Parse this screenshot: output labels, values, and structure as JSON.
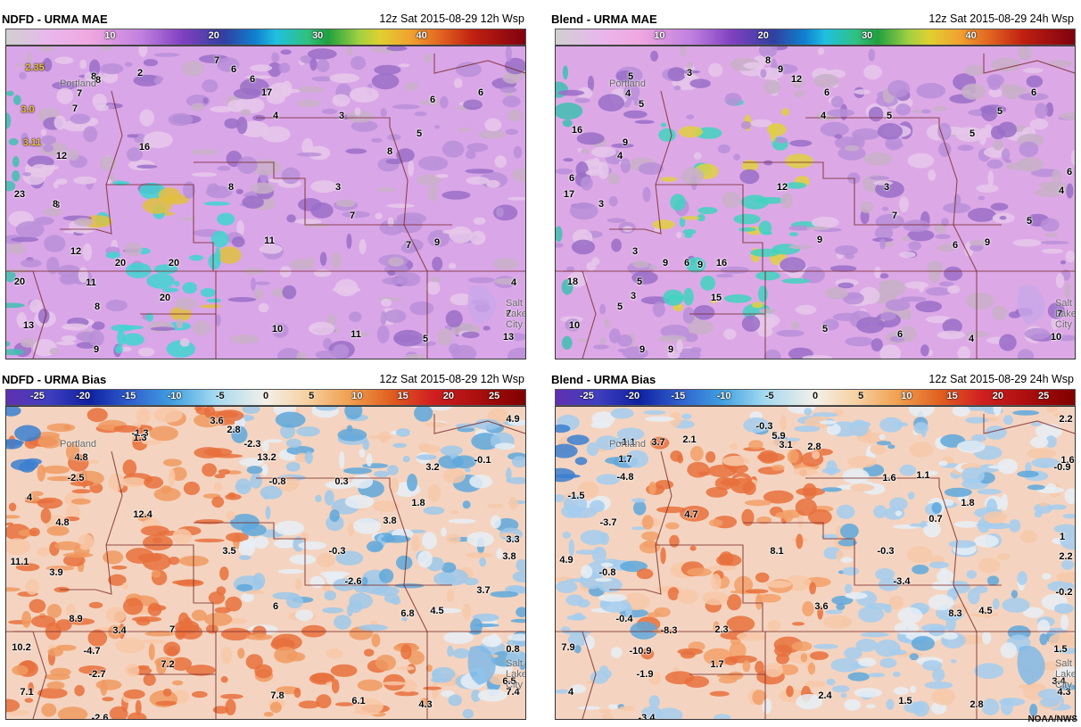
{
  "panels": [
    {
      "title": "NDFD - URMA MAE",
      "date": "12z Sat 2015-08-29 12h Wsp",
      "scale": "mae",
      "colors": {
        "base": "#d9a6e8",
        "hot1": "#3fd3d0",
        "hot2": "#e0c040"
      },
      "colorbar_ticks": [
        "10",
        "20",
        "30",
        "40"
      ],
      "labels": [
        "2",
        "7",
        "6",
        "6",
        "8",
        "8",
        "7",
        "17",
        "6",
        "6",
        "7",
        "4",
        "3",
        "8",
        "5",
        "16",
        "12",
        "8",
        "8",
        "3",
        "7",
        "23",
        "8",
        "11",
        "12",
        "20",
        "20",
        "7",
        "9",
        "20",
        "11",
        "8",
        "20",
        "10",
        "13",
        "9",
        "11",
        "5",
        "4",
        "7",
        "13",
        "2.35",
        "3.0",
        "3.11"
      ],
      "cities": [
        "Portland",
        "Salt",
        "Lake",
        "City"
      ]
    },
    {
      "title": "Blend - URMA MAE",
      "date": "12z Sat 2015-08-29 24h Wsp",
      "scale": "mae",
      "colors": {
        "base": "#dca9e6",
        "hot1": "#40d3c0",
        "hot2": "#e0d040"
      },
      "colorbar_ticks": [
        "10",
        "20",
        "30",
        "40"
      ],
      "labels": [
        "3",
        "8",
        "9",
        "12",
        "6",
        "5",
        "4",
        "6",
        "16",
        "9",
        "6",
        "4",
        "5",
        "4",
        "5",
        "5",
        "5",
        "6",
        "4",
        "17",
        "3",
        "12",
        "3",
        "7",
        "5",
        "3",
        "6",
        "6",
        "9",
        "9",
        "9",
        "9",
        "3",
        "16",
        "5",
        "18",
        "5",
        "15",
        "9",
        "10",
        "9",
        "5",
        "6",
        "4",
        "7",
        "10"
      ],
      "cities": [
        "Portland",
        "Salt",
        "Lake",
        "City"
      ]
    },
    {
      "title": "NDFD - URMA Bias",
      "date": "12z Sat 2015-08-29 12h Wsp",
      "scale": "bias",
      "colors": {
        "warm": "#f09a60",
        "cool": "#9ec8ea"
      },
      "colorbar_ticks": [
        "-25",
        "-20",
        "-15",
        "-10",
        "-5",
        "0",
        "5",
        "10",
        "15",
        "20",
        "25"
      ],
      "labels": [
        "-1.3",
        "3.6",
        "2.8",
        "1.3",
        "-2.3",
        "4.8",
        "13.2",
        "4.9",
        "-2.5",
        "-0.8",
        "0.3",
        "3.2",
        "-0.1",
        "4",
        "12.4",
        "1.8",
        "4.8",
        "3.8",
        "3.3",
        "3.5",
        "-0.3",
        "3.8",
        "11.1",
        "3.9",
        "-2.6",
        "3.7",
        "6",
        "6.8",
        "4.5",
        "8.9",
        "3.4",
        "7",
        "10.2",
        "-4.7",
        "7.2",
        "0.8",
        "-2.7",
        "6.5",
        "7.1",
        "7.8",
        "6.1",
        "4.3",
        "7.4",
        "-2.6"
      ],
      "cities": [
        "Portland",
        "Salt",
        "Lake",
        "City"
      ]
    },
    {
      "title": "Blend - URMA Bias",
      "date": "12z Sat 2015-08-29 24h Wsp",
      "scale": "bias",
      "colors": {
        "warm": "#f2a068",
        "cool": "#a3cdee"
      },
      "colorbar_ticks": [
        "-25",
        "-20",
        "-15",
        "-10",
        "-5",
        "0",
        "5",
        "10",
        "15",
        "20",
        "25"
      ],
      "labels": [
        "-1.1",
        "3.7",
        "-0.3",
        "2.2",
        "2.1",
        "5.9",
        "1.7",
        "3.1",
        "2.8",
        "-4.8",
        "1.6",
        "1.1",
        "1.6",
        "-0.9",
        "-1.5",
        "1.8",
        "-3.7",
        "4.7",
        "0.7",
        "1",
        "8.1",
        "-0.3",
        "2.2",
        "4.9",
        "-0.8",
        "-3.4",
        "-0.2",
        "3.6",
        "8.3",
        "4.5",
        "-0.4",
        "-8.3",
        "2.3",
        "7.9",
        "-10.9",
        "1.7",
        "1.5",
        "-1.9",
        "3.4",
        "4",
        "2.4",
        "1.5",
        "2.8",
        "4.3",
        "-3.4"
      ],
      "cities": [
        "Portland",
        "Salt",
        "Lake",
        "City"
      ]
    }
  ],
  "credit": "NOAA/NWS"
}
